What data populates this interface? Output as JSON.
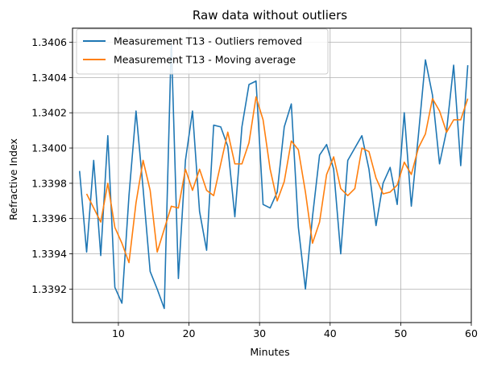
{
  "chart_data": {
    "type": "line",
    "title": "Raw data without outliers",
    "xlabel": "Minutes",
    "ylabel": "Refractive Index",
    "xlim": [
      3.5,
      60
    ],
    "ylim": [
      1.33901,
      1.34068
    ],
    "xticks": [
      10,
      20,
      30,
      40,
      50,
      60
    ],
    "xtick_labels": [
      "10",
      "20",
      "30",
      "40",
      "50",
      "60"
    ],
    "yticks": [
      1.3392,
      1.3394,
      1.3396,
      1.3398,
      1.34,
      1.3402,
      1.3404,
      1.3406
    ],
    "ytick_labels": [
      "1.3392",
      "1.3394",
      "1.3396",
      "1.3398",
      "1.3400",
      "1.3402",
      "1.3404",
      "1.3406"
    ],
    "grid": true,
    "legend_position": "top-left",
    "series": [
      {
        "name": "Measurement T13 - Outliers removed",
        "color": "#1f77b4",
        "x": [
          4.5,
          5.5,
          6.5,
          7.5,
          8.5,
          9.5,
          10.5,
          11.5,
          12.5,
          13.5,
          14.5,
          15.5,
          16.5,
          17.5,
          18.5,
          19.5,
          20.5,
          21.5,
          22.5,
          23.5,
          24.5,
          25.5,
          26.5,
          27.5,
          28.5,
          29.5,
          30.5,
          31.5,
          32.5,
          33.5,
          34.5,
          35.5,
          36.5,
          37.5,
          38.5,
          39.5,
          40.5,
          41.5,
          42.5,
          43.5,
          44.5,
          45.5,
          46.5,
          47.5,
          48.5,
          49.5,
          50.5,
          51.5,
          52.5,
          53.5,
          54.5,
          55.5,
          56.5,
          57.5,
          58.5,
          59.5
        ],
        "y": [
          1.33987,
          1.33941,
          1.33993,
          1.33939,
          1.34007,
          1.33921,
          1.33912,
          1.33973,
          1.34021,
          1.33977,
          1.3393,
          1.3392,
          1.33909,
          1.34061,
          1.33926,
          1.33993,
          1.34021,
          1.33964,
          1.33942,
          1.34013,
          1.34012,
          1.34001,
          1.33961,
          1.34012,
          1.34036,
          1.34038,
          1.33968,
          1.33966,
          1.33975,
          1.34012,
          1.34025,
          1.33955,
          1.3392,
          1.33961,
          1.33996,
          1.34002,
          1.33988,
          1.3394,
          1.33993,
          1.34,
          1.34007,
          1.33988,
          1.33956,
          1.3398,
          1.33989,
          1.33968,
          1.3402,
          1.33967,
          1.34007,
          1.3405,
          1.3403,
          1.33991,
          1.3401,
          1.34047,
          1.3399,
          1.34047
        ]
      },
      {
        "name": "Measurement T13 - Moving average",
        "color": "#ff7f0e",
        "x": [
          5.5,
          6.5,
          7.5,
          8.5,
          9.5,
          10.5,
          11.5,
          12.5,
          13.5,
          14.5,
          15.5,
          16.5,
          17.5,
          18.5,
          19.5,
          20.5,
          21.5,
          22.5,
          23.5,
          24.5,
          25.5,
          26.5,
          27.5,
          28.5,
          29.5,
          30.5,
          31.5,
          32.5,
          33.5,
          34.5,
          35.5,
          36.5,
          37.5,
          38.5,
          39.5,
          40.5,
          41.5,
          42.5,
          43.5,
          44.5,
          45.5,
          46.5,
          47.5,
          48.5,
          49.5,
          50.5,
          51.5,
          52.5,
          53.5,
          54.5,
          55.5,
          56.5,
          57.5,
          58.5,
          59.5
        ],
        "y": [
          1.33974,
          1.33966,
          1.33958,
          1.3398,
          1.33955,
          1.33946,
          1.33935,
          1.33969,
          1.33993,
          1.33976,
          1.33941,
          1.33954,
          1.33967,
          1.33966,
          1.33988,
          1.33976,
          1.33988,
          1.33976,
          1.33973,
          1.33991,
          1.34009,
          1.33991,
          1.33991,
          1.34003,
          1.34029,
          1.34016,
          1.33988,
          1.3397,
          1.33981,
          1.34004,
          1.33999,
          1.33975,
          1.33946,
          1.33958,
          1.33985,
          1.33995,
          1.33977,
          1.33973,
          1.33977,
          1.34,
          1.33998,
          1.33983,
          1.33974,
          1.33975,
          1.33979,
          1.33992,
          1.33985,
          1.34,
          1.34008,
          1.34028,
          1.34021,
          1.34009,
          1.34016,
          1.34016,
          1.34028
        ]
      }
    ]
  }
}
